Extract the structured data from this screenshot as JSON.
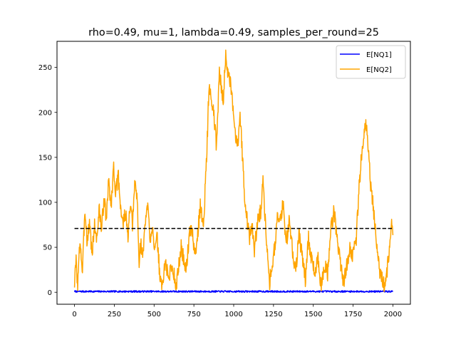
{
  "chart_data": {
    "type": "line",
    "title": "rho=0.49, mu=1, lambda=0.49, samples_per_round=25",
    "xlabel": "",
    "ylabel": "",
    "xlim": [
      -110,
      2110
    ],
    "ylim": [
      -13.3,
      279
    ],
    "grid": false,
    "legend_position": "top-right",
    "x_ticks": [
      0,
      250,
      500,
      750,
      1000,
      1250,
      1500,
      1750,
      2000
    ],
    "y_ticks": [
      0,
      50,
      100,
      150,
      200,
      250
    ],
    "reference_line": {
      "y": 71,
      "x_range": [
        0,
        2000
      ],
      "style": "dashed",
      "color": "#000000"
    },
    "series": [
      {
        "name": "E[NQ1]",
        "color": "#0000ff",
        "keypoints": [
          [
            0,
            0.9
          ],
          [
            2000,
            0.9
          ]
        ],
        "noise": 0.9,
        "seed": 7
      },
      {
        "name": "E[NQ2]",
        "color": "#ffa500",
        "noise": 9,
        "seed": 3,
        "keypoints": [
          [
            0,
            10
          ],
          [
            10,
            35
          ],
          [
            20,
            8
          ],
          [
            35,
            60
          ],
          [
            50,
            20
          ],
          [
            65,
            95
          ],
          [
            80,
            55
          ],
          [
            95,
            80
          ],
          [
            110,
            40
          ],
          [
            125,
            75
          ],
          [
            140,
            60
          ],
          [
            155,
            92
          ],
          [
            170,
            70
          ],
          [
            185,
            105
          ],
          [
            200,
            80
          ],
          [
            215,
            125
          ],
          [
            230,
            95
          ],
          [
            245,
            140
          ],
          [
            260,
            110
          ],
          [
            275,
            130
          ],
          [
            290,
            95
          ],
          [
            305,
            75
          ],
          [
            320,
            90
          ],
          [
            335,
            60
          ],
          [
            350,
            95
          ],
          [
            365,
            75
          ],
          [
            380,
            125
          ],
          [
            395,
            100
          ],
          [
            405,
            30
          ],
          [
            415,
            55
          ],
          [
            430,
            40
          ],
          [
            445,
            80
          ],
          [
            460,
            95
          ],
          [
            475,
            60
          ],
          [
            490,
            75
          ],
          [
            505,
            45
          ],
          [
            520,
            60
          ],
          [
            535,
            20
          ],
          [
            550,
            5
          ],
          [
            570,
            35
          ],
          [
            590,
            15
          ],
          [
            610,
            30
          ],
          [
            640,
            8
          ],
          [
            670,
            50
          ],
          [
            700,
            25
          ],
          [
            730,
            75
          ],
          [
            760,
            40
          ],
          [
            790,
            95
          ],
          [
            810,
            75
          ],
          [
            830,
            150
          ],
          [
            845,
            230
          ],
          [
            860,
            210
          ],
          [
            875,
            200
          ],
          [
            890,
            165
          ],
          [
            900,
            200
          ],
          [
            910,
            245
          ],
          [
            920,
            230
          ],
          [
            935,
            215
          ],
          [
            950,
            265
          ],
          [
            965,
            240
          ],
          [
            980,
            230
          ],
          [
            995,
            205
          ],
          [
            1010,
            175
          ],
          [
            1025,
            165
          ],
          [
            1040,
            200
          ],
          [
            1055,
            150
          ],
          [
            1070,
            105
          ],
          [
            1085,
            80
          ],
          [
            1100,
            60
          ],
          [
            1115,
            75
          ],
          [
            1130,
            45
          ],
          [
            1150,
            80
          ],
          [
            1170,
            90
          ],
          [
            1185,
            125
          ],
          [
            1200,
            75
          ],
          [
            1215,
            40
          ],
          [
            1225,
            10
          ],
          [
            1240,
            30
          ],
          [
            1260,
            55
          ],
          [
            1275,
            85
          ],
          [
            1290,
            75
          ],
          [
            1310,
            100
          ],
          [
            1330,
            55
          ],
          [
            1350,
            80
          ],
          [
            1370,
            45
          ],
          [
            1390,
            25
          ],
          [
            1410,
            65
          ],
          [
            1430,
            40
          ],
          [
            1450,
            15
          ],
          [
            1470,
            60
          ],
          [
            1490,
            35
          ],
          [
            1510,
            20
          ],
          [
            1530,
            40
          ],
          [
            1550,
            5
          ],
          [
            1570,
            30
          ],
          [
            1590,
            20
          ],
          [
            1610,
            70
          ],
          [
            1630,
            90
          ],
          [
            1650,
            60
          ],
          [
            1670,
            35
          ],
          [
            1690,
            10
          ],
          [
            1710,
            30
          ],
          [
            1730,
            50
          ],
          [
            1750,
            40
          ],
          [
            1770,
            60
          ],
          [
            1785,
            110
          ],
          [
            1800,
            145
          ],
          [
            1815,
            170
          ],
          [
            1830,
            185
          ],
          [
            1845,
            165
          ],
          [
            1860,
            120
          ],
          [
            1875,
            100
          ],
          [
            1890,
            70
          ],
          [
            1905,
            40
          ],
          [
            1920,
            20
          ],
          [
            1935,
            15
          ],
          [
            1950,
            5
          ],
          [
            1965,
            25
          ],
          [
            1980,
            55
          ],
          [
            1990,
            80
          ],
          [
            2000,
            65
          ]
        ]
      }
    ]
  }
}
